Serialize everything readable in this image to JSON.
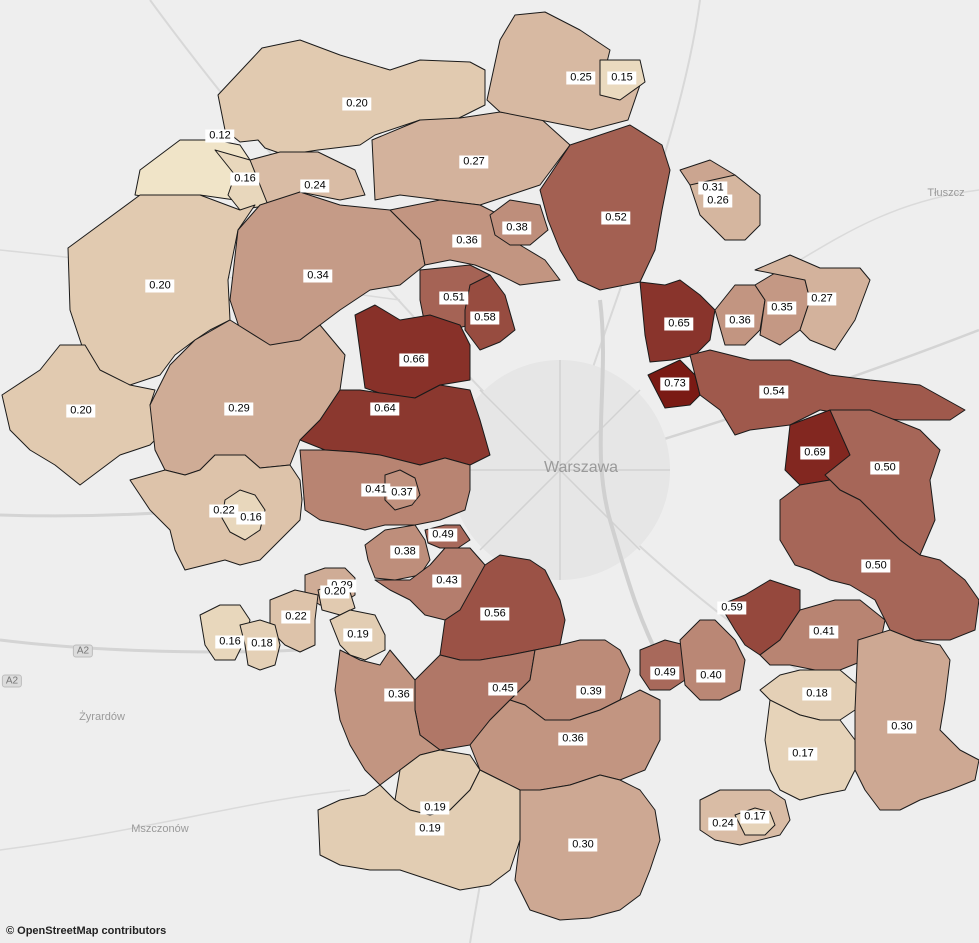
{
  "attribution": "© OpenStreetMap contributors",
  "basemap": {
    "places": [
      {
        "name": "Warszawa",
        "size": 16
      },
      {
        "name": "Tłuszcz",
        "size": 11
      },
      {
        "name": "Żyrardów",
        "size": 11
      },
      {
        "name": "Mszczonów",
        "size": 11
      }
    ],
    "roads": [
      "A2",
      "A2"
    ]
  },
  "color_scale": {
    "low": "#f0e4c8",
    "high": "#7a1a14"
  },
  "regions": [
    {
      "value": "0.20"
    },
    {
      "value": "0.12"
    },
    {
      "value": "0.16"
    },
    {
      "value": "0.24"
    },
    {
      "value": "0.27"
    },
    {
      "value": "0.25"
    },
    {
      "value": "0.15"
    },
    {
      "value": "0.52"
    },
    {
      "value": "0.31"
    },
    {
      "value": "0.26"
    },
    {
      "value": "0.20"
    },
    {
      "value": "0.34"
    },
    {
      "value": "0.36"
    },
    {
      "value": "0.38"
    },
    {
      "value": "0.51"
    },
    {
      "value": "0.58"
    },
    {
      "value": "0.65"
    },
    {
      "value": "0.36"
    },
    {
      "value": "0.35"
    },
    {
      "value": "0.27"
    },
    {
      "value": "0.66"
    },
    {
      "value": "0.20"
    },
    {
      "value": "0.29"
    },
    {
      "value": "0.64"
    },
    {
      "value": "0.73"
    },
    {
      "value": "0.54"
    },
    {
      "value": "0.69"
    },
    {
      "value": "0.50"
    },
    {
      "value": "0.41"
    },
    {
      "value": "0.37"
    },
    {
      "value": "0.22"
    },
    {
      "value": "0.16"
    },
    {
      "value": "0.49"
    },
    {
      "value": "0.38"
    },
    {
      "value": "0.43"
    },
    {
      "value": "0.29"
    },
    {
      "value": "0.20"
    },
    {
      "value": "0.50"
    },
    {
      "value": "0.56"
    },
    {
      "value": "0.22"
    },
    {
      "value": "0.19"
    },
    {
      "value": "0.59"
    },
    {
      "value": "0.41"
    },
    {
      "value": "0.16"
    },
    {
      "value": "0.18"
    },
    {
      "value": "0.49"
    },
    {
      "value": "0.40"
    },
    {
      "value": "0.45"
    },
    {
      "value": "0.39"
    },
    {
      "value": "0.36"
    },
    {
      "value": "0.18"
    },
    {
      "value": "0.36"
    },
    {
      "value": "0.30"
    },
    {
      "value": "0.17"
    },
    {
      "value": "0.19"
    },
    {
      "value": "0.19"
    },
    {
      "value": "0.24"
    },
    {
      "value": "0.17"
    },
    {
      "value": "0.30"
    }
  ]
}
